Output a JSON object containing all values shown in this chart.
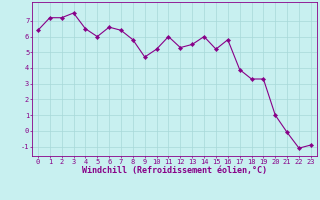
{
  "x": [
    0,
    1,
    2,
    3,
    4,
    5,
    6,
    7,
    8,
    9,
    10,
    11,
    12,
    13,
    14,
    15,
    16,
    17,
    18,
    19,
    20,
    21,
    22,
    23
  ],
  "y": [
    6.4,
    7.2,
    7.2,
    7.5,
    6.5,
    6.0,
    6.6,
    6.4,
    5.8,
    4.7,
    5.2,
    6.0,
    5.3,
    5.5,
    6.0,
    5.2,
    5.8,
    3.9,
    3.3,
    3.3,
    1.0,
    -0.1,
    -1.1,
    -0.9
  ],
  "line_color": "#880088",
  "marker": "D",
  "marker_size": 2.2,
  "bg_color": "#c8f0f0",
  "grid_color": "#a8d8d8",
  "xlabel": "Windchill (Refroidissement éolien,°C)",
  "xlim": [
    -0.5,
    23.5
  ],
  "ylim": [
    -1.6,
    8.2
  ],
  "yticks": [
    -1,
    0,
    1,
    2,
    3,
    4,
    5,
    6,
    7
  ],
  "xticks": [
    0,
    1,
    2,
    3,
    4,
    5,
    6,
    7,
    8,
    9,
    10,
    11,
    12,
    13,
    14,
    15,
    16,
    17,
    18,
    19,
    20,
    21,
    22,
    23
  ],
  "spine_color": "#880088",
  "tick_color": "#880088",
  "label_color": "#880088",
  "tick_font_size": 5.0,
  "label_font_size": 6.0,
  "linewidth": 0.8
}
